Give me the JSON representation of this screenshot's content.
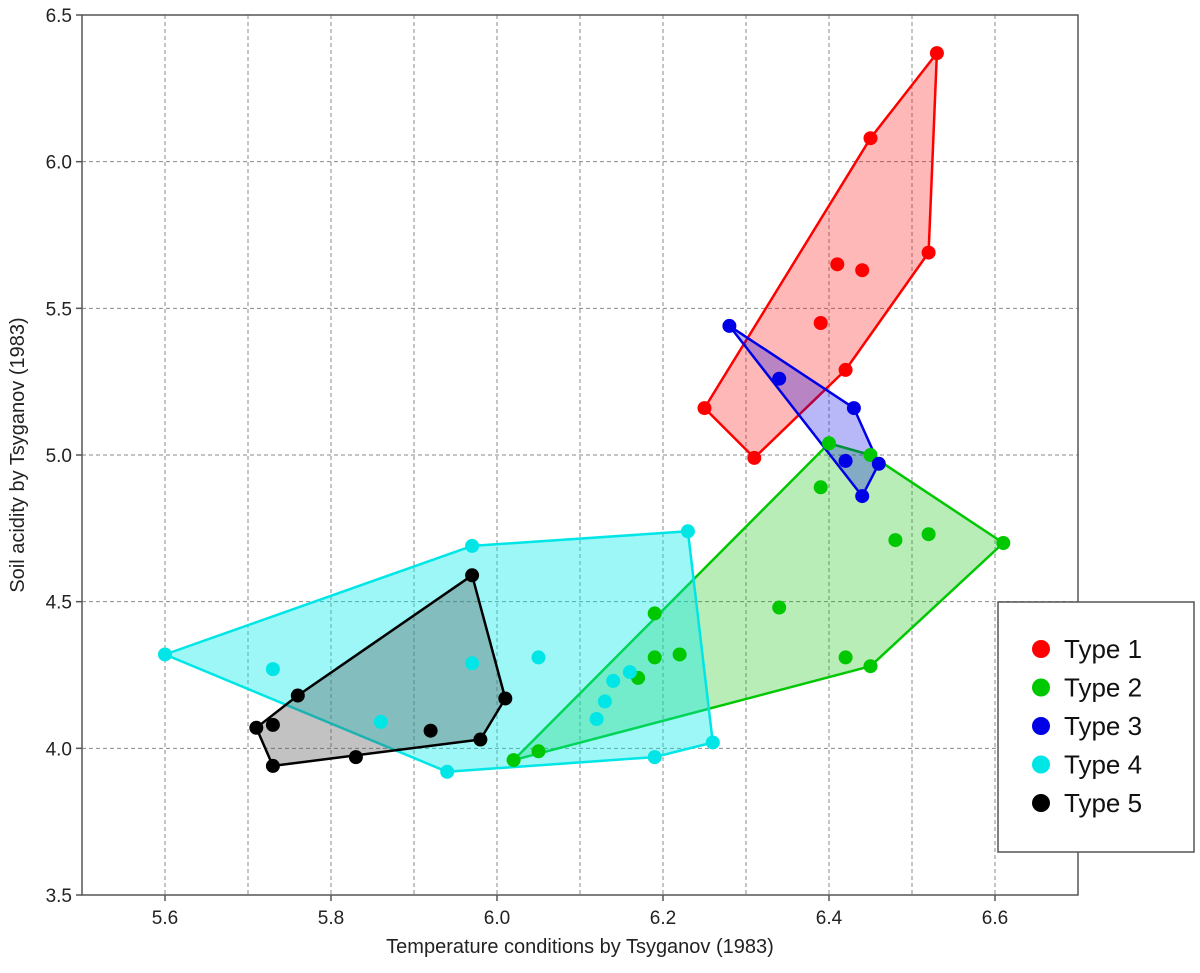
{
  "chart_data": {
    "type": "scatter",
    "title": "",
    "xlabel": "Temperature conditions by Tsyganov (1983)",
    "ylabel": "Soil acidity by Tsyganov (1983)",
    "xlim": [
      5.5,
      6.7
    ],
    "ylim": [
      3.5,
      6.5
    ],
    "xticks": [
      5.6,
      5.8,
      6.0,
      6.2,
      6.4,
      6.6
    ],
    "xtick_labels": [
      "5.6",
      "5.8",
      "6.0",
      "6.2",
      "6.4",
      "6.6"
    ],
    "xgrid": [
      5.6,
      5.7,
      5.8,
      5.9,
      6.0,
      6.1,
      6.2,
      6.3,
      6.4,
      6.5,
      6.6
    ],
    "yticks": [
      3.5,
      4.0,
      4.5,
      5.0,
      5.5,
      6.0,
      6.5
    ],
    "ytick_labels": [
      "3.5",
      "4.0",
      "4.5",
      "5.0",
      "5.5",
      "6.0",
      "6.5"
    ],
    "grid": true,
    "legend_position": "right",
    "series": [
      {
        "name": "Type 1",
        "color": "#ff0000",
        "fill": "rgba(255,0,0,0.28)",
        "points": [
          [
            6.53,
            6.37
          ],
          [
            6.45,
            6.08
          ],
          [
            6.52,
            5.69
          ],
          [
            6.41,
            5.65
          ],
          [
            6.44,
            5.63
          ],
          [
            6.39,
            5.45
          ],
          [
            6.42,
            5.29
          ],
          [
            6.25,
            5.16
          ],
          [
            6.31,
            4.99
          ]
        ],
        "hull": [
          [
            6.53,
            6.37
          ],
          [
            6.52,
            5.69
          ],
          [
            6.42,
            5.29
          ],
          [
            6.31,
            4.99
          ],
          [
            6.25,
            5.16
          ],
          [
            6.45,
            6.08
          ]
        ]
      },
      {
        "name": "Type 2",
        "color": "#00c800",
        "fill": "rgba(0,190,0,0.28)",
        "points": [
          [
            6.4,
            5.04
          ],
          [
            6.45,
            5.0
          ],
          [
            6.39,
            4.89
          ],
          [
            6.48,
            4.71
          ],
          [
            6.52,
            4.73
          ],
          [
            6.61,
            4.7
          ],
          [
            6.34,
            4.48
          ],
          [
            6.19,
            4.46
          ],
          [
            6.19,
            4.31
          ],
          [
            6.22,
            4.32
          ],
          [
            6.17,
            4.24
          ],
          [
            6.42,
            4.31
          ],
          [
            6.45,
            4.28
          ],
          [
            6.05,
            3.99
          ],
          [
            6.02,
            3.96
          ]
        ],
        "hull": [
          [
            6.4,
            5.04
          ],
          [
            6.45,
            5.0
          ],
          [
            6.61,
            4.7
          ],
          [
            6.45,
            4.28
          ],
          [
            6.02,
            3.96
          ]
        ]
      },
      {
        "name": "Type 3",
        "color": "#0000e6",
        "fill": "rgba(0,0,230,0.28)",
        "points": [
          [
            6.28,
            5.44
          ],
          [
            6.34,
            5.26
          ],
          [
            6.43,
            5.16
          ],
          [
            6.42,
            4.98
          ],
          [
            6.46,
            4.97
          ],
          [
            6.44,
            4.86
          ]
        ],
        "hull": [
          [
            6.28,
            5.44
          ],
          [
            6.43,
            5.16
          ],
          [
            6.46,
            4.97
          ],
          [
            6.44,
            4.86
          ]
        ]
      },
      {
        "name": "Type 4",
        "color": "#00e6e6",
        "fill": "rgba(0,235,235,0.38)",
        "points": [
          [
            5.6,
            4.32
          ],
          [
            5.73,
            4.27
          ],
          [
            5.97,
            4.69
          ],
          [
            6.23,
            4.74
          ],
          [
            5.97,
            4.29
          ],
          [
            6.05,
            4.31
          ],
          [
            5.86,
            4.09
          ],
          [
            6.12,
            4.1
          ],
          [
            6.13,
            4.16
          ],
          [
            6.14,
            4.23
          ],
          [
            6.16,
            4.26
          ],
          [
            6.19,
            3.97
          ],
          [
            6.26,
            4.02
          ],
          [
            5.94,
            3.92
          ]
        ],
        "hull": [
          [
            5.6,
            4.32
          ],
          [
            5.97,
            4.69
          ],
          [
            6.23,
            4.74
          ],
          [
            6.26,
            4.02
          ],
          [
            6.19,
            3.97
          ],
          [
            5.94,
            3.92
          ]
        ]
      },
      {
        "name": "Type 5",
        "color": "#000000",
        "fill": "rgba(80,80,80,0.35)",
        "points": [
          [
            5.97,
            4.59
          ],
          [
            5.76,
            4.18
          ],
          [
            6.01,
            4.17
          ],
          [
            5.71,
            4.07
          ],
          [
            5.73,
            4.08
          ],
          [
            5.92,
            4.06
          ],
          [
            5.98,
            4.03
          ],
          [
            5.83,
            3.97
          ],
          [
            5.73,
            3.94
          ]
        ],
        "hull": [
          [
            5.97,
            4.59
          ],
          [
            6.01,
            4.17
          ],
          [
            5.98,
            4.03
          ],
          [
            5.73,
            3.94
          ],
          [
            5.71,
            4.07
          ],
          [
            5.76,
            4.18
          ]
        ]
      }
    ]
  }
}
